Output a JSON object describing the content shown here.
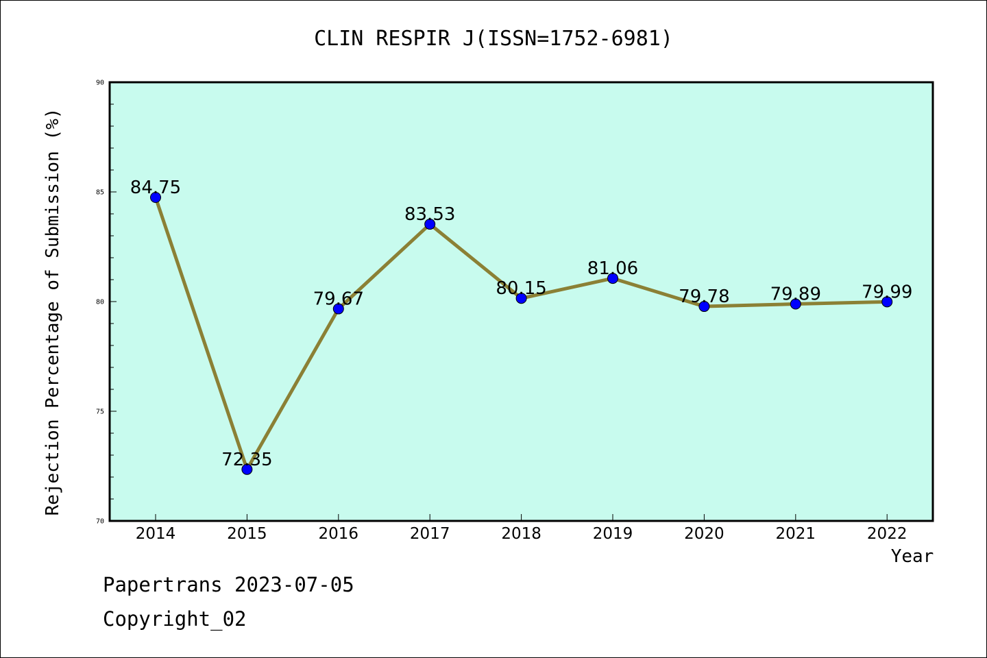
{
  "chart_data": {
    "type": "line",
    "title": "CLIN RESPIR J(ISSN=1752-6981)",
    "xlabel": "Year",
    "ylabel": "Rejection Percentage of Submission (%)",
    "categories": [
      "2014",
      "2015",
      "2016",
      "2017",
      "2018",
      "2019",
      "2020",
      "2021",
      "2022"
    ],
    "values": [
      84.75,
      72.35,
      79.67,
      83.53,
      80.15,
      81.06,
      79.78,
      79.89,
      79.99
    ],
    "data_labels": [
      "84.75",
      "72.35",
      "79.67",
      "83.53",
      "80.15",
      "81.06",
      "79.78",
      "79.89",
      "79.99"
    ],
    "ylim": [
      70,
      90
    ],
    "yticks": [
      70,
      75,
      80,
      85,
      90
    ],
    "ytick_labels": [
      "70",
      "75",
      "80",
      "85",
      "90"
    ],
    "grid": false,
    "colors": {
      "plot_background": "#c8fbee",
      "line": "#8b8035",
      "marker": "#0000ff"
    }
  },
  "footer": {
    "line1": "Papertrans 2023-07-05",
    "line2": "Copyright_02"
  }
}
